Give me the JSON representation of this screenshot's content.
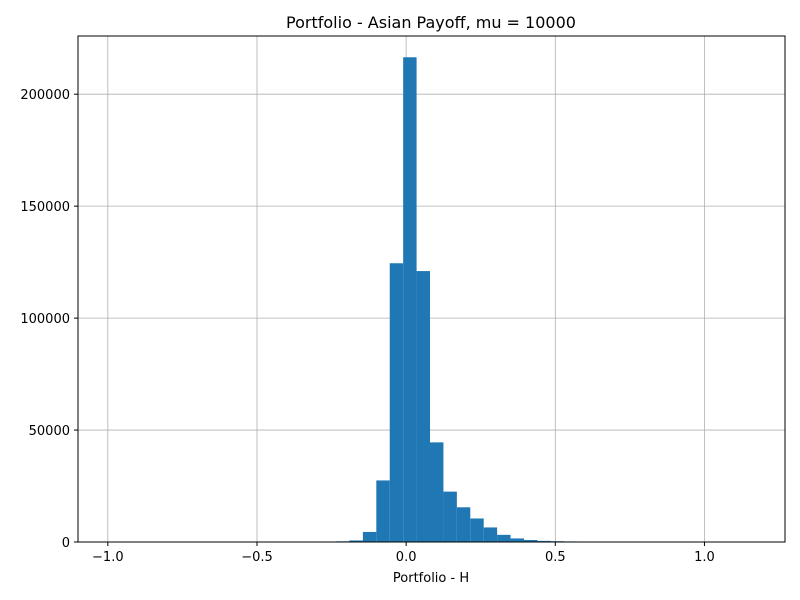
{
  "chart_data": {
    "type": "bar",
    "title": "Portfolio - Asian Payoff, mu = 10000",
    "xlabel": "Portfolio - H",
    "ylabel": "",
    "xlim": [
      -1.1,
      1.27
    ],
    "ylim": [
      0,
      226000
    ],
    "grid": true,
    "bar_color": "#1f77b4",
    "x_ticks": [
      {
        "value": -1.0,
        "label": "−1.0"
      },
      {
        "value": -0.5,
        "label": "−0.5"
      },
      {
        "value": 0.0,
        "label": "0.0"
      },
      {
        "value": 0.5,
        "label": "0.5"
      },
      {
        "value": 1.0,
        "label": "1.0"
      }
    ],
    "y_ticks": [
      {
        "value": 0,
        "label": "0"
      },
      {
        "value": 50000,
        "label": "50000"
      },
      {
        "value": 100000,
        "label": "100000"
      },
      {
        "value": 150000,
        "label": "150000"
      },
      {
        "value": 200000,
        "label": "200000"
      }
    ],
    "bins": [
      {
        "x0": -0.28,
        "x1": -0.235,
        "count": 150
      },
      {
        "x0": -0.235,
        "x1": -0.19,
        "count": 300
      },
      {
        "x0": -0.19,
        "x1": -0.145,
        "count": 700
      },
      {
        "x0": -0.145,
        "x1": -0.1,
        "count": 4500
      },
      {
        "x0": -0.1,
        "x1": -0.055,
        "count": 27500
      },
      {
        "x0": -0.055,
        "x1": -0.01,
        "count": 124500
      },
      {
        "x0": -0.01,
        "x1": 0.035,
        "count": 216500
      },
      {
        "x0": 0.035,
        "x1": 0.08,
        "count": 121000
      },
      {
        "x0": 0.08,
        "x1": 0.125,
        "count": 44500
      },
      {
        "x0": 0.125,
        "x1": 0.17,
        "count": 22500
      },
      {
        "x0": 0.17,
        "x1": 0.215,
        "count": 15500
      },
      {
        "x0": 0.215,
        "x1": 0.26,
        "count": 10500
      },
      {
        "x0": 0.26,
        "x1": 0.305,
        "count": 6500
      },
      {
        "x0": 0.305,
        "x1": 0.35,
        "count": 3200
      },
      {
        "x0": 0.35,
        "x1": 0.395,
        "count": 1600
      },
      {
        "x0": 0.395,
        "x1": 0.44,
        "count": 900
      },
      {
        "x0": 0.44,
        "x1": 0.485,
        "count": 500
      },
      {
        "x0": 0.485,
        "x1": 0.53,
        "count": 350
      },
      {
        "x0": 0.53,
        "x1": 0.575,
        "count": 250
      },
      {
        "x0": 0.575,
        "x1": 0.62,
        "count": 150
      }
    ]
  }
}
